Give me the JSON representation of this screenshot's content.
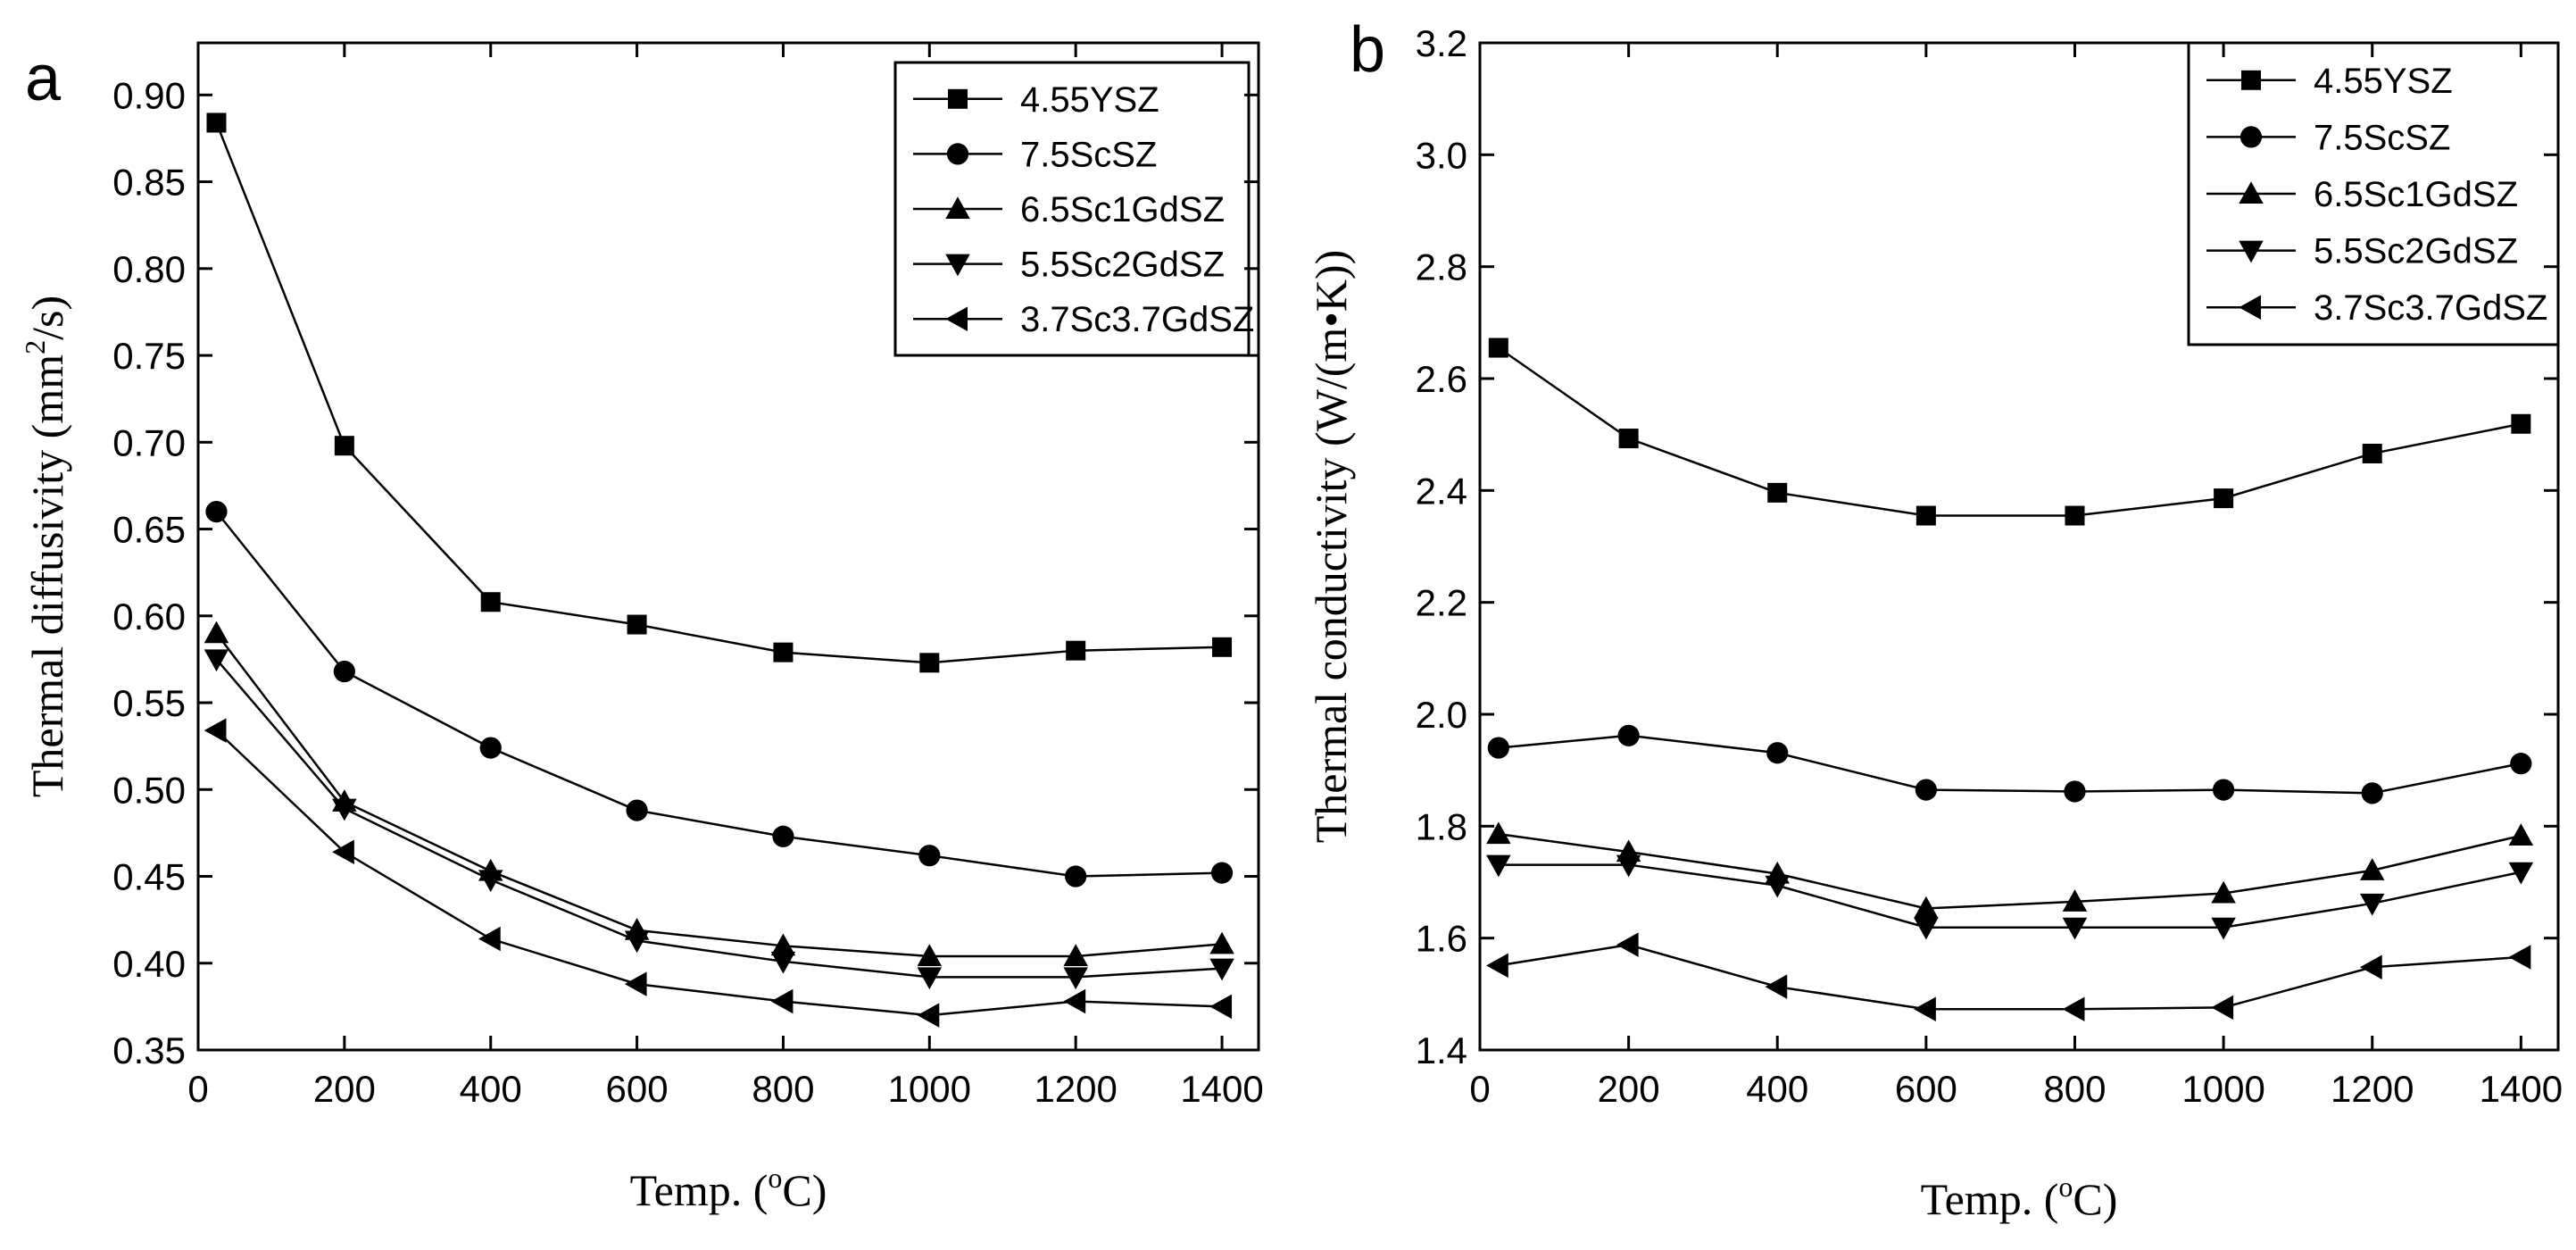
{
  "chart_data": [
    {
      "type": "line",
      "panel_label": "a",
      "title": "",
      "xlabel_prefix": "Temp. (",
      "xlabel_sup": "o",
      "xlabel_suffix": "C)",
      "ylabel_prefix": "Thermal diffusivity (mm",
      "ylabel_sup": "2",
      "ylabel_suffix": "/s)",
      "xlim": [
        0,
        1450
      ],
      "ylim": [
        0.35,
        0.93
      ],
      "xticks": [
        0,
        200,
        400,
        600,
        800,
        1000,
        1200,
        1400
      ],
      "xtick_labels": [
        "0",
        "200",
        "400",
        "600",
        "800",
        "1000",
        "1200",
        "1400"
      ],
      "yticks": [
        0.35,
        0.4,
        0.45,
        0.5,
        0.55,
        0.6,
        0.65,
        0.7,
        0.75,
        0.8,
        0.85,
        0.9
      ],
      "ytick_labels": [
        "0.35",
        "0.40",
        "0.45",
        "0.50",
        "0.55",
        "0.60",
        "0.65",
        "0.70",
        "0.75",
        "0.80",
        "0.85",
        "0.90"
      ],
      "grid": false,
      "legend_position": "top-right",
      "x": [
        25,
        200,
        400,
        600,
        800,
        1000,
        1200,
        1400
      ],
      "series": [
        {
          "name": "4.55YSZ",
          "marker": "square",
          "values": [
            0.884,
            0.698,
            0.608,
            0.595,
            0.579,
            0.573,
            0.58,
            0.582
          ]
        },
        {
          "name": "7.5ScSZ",
          "marker": "circle",
          "values": [
            0.66,
            0.568,
            0.524,
            0.488,
            0.473,
            0.462,
            0.45,
            0.452
          ]
        },
        {
          "name": "6.5Sc1GdSZ",
          "marker": "triangle-up",
          "values": [
            0.59,
            0.493,
            0.453,
            0.419,
            0.41,
            0.404,
            0.404,
            0.411
          ]
        },
        {
          "name": "5.5Sc2GdSZ",
          "marker": "triangle-down",
          "values": [
            0.575,
            0.489,
            0.448,
            0.413,
            0.401,
            0.392,
            0.392,
            0.397
          ]
        },
        {
          "name": "3.7Sc3.7GdSZ",
          "marker": "triangle-left",
          "values": [
            0.534,
            0.464,
            0.414,
            0.388,
            0.378,
            0.37,
            0.378,
            0.375
          ]
        }
      ]
    },
    {
      "type": "line",
      "panel_label": "b",
      "title": "",
      "xlabel_prefix": "Temp. (",
      "xlabel_sup": "o",
      "xlabel_suffix": "C)",
      "ylabel": "Thermal conductivity (W/(m•K))",
      "xlim": [
        0,
        1450
      ],
      "ylim": [
        1.4,
        3.2
      ],
      "xticks": [
        0,
        200,
        400,
        600,
        800,
        1000,
        1200,
        1400
      ],
      "xtick_labels": [
        "0",
        "200",
        "400",
        "600",
        "800",
        "1000",
        "1200",
        "1400"
      ],
      "yticks": [
        1.4,
        1.6,
        1.8,
        2.0,
        2.2,
        2.4,
        2.6,
        2.8,
        3.0,
        3.2
      ],
      "ytick_labels": [
        "1.4",
        "1.6",
        "1.8",
        "2.0",
        "2.2",
        "2.4",
        "2.6",
        "2.8",
        "3.0",
        "3.2"
      ],
      "grid": false,
      "legend_position": "top-right",
      "x": [
        25,
        200,
        400,
        600,
        800,
        1000,
        1200,
        1400
      ],
      "series": [
        {
          "name": "4.55YSZ",
          "marker": "square",
          "values": [
            2.655,
            2.493,
            2.396,
            2.355,
            2.355,
            2.386,
            2.466,
            2.519
          ]
        },
        {
          "name": "7.5ScSZ",
          "marker": "circle",
          "values": [
            1.94,
            1.962,
            1.931,
            1.865,
            1.862,
            1.865,
            1.859,
            1.912
          ]
        },
        {
          "name": "6.5Sc1GdSZ",
          "marker": "triangle-up",
          "values": [
            1.786,
            1.754,
            1.715,
            1.653,
            1.665,
            1.68,
            1.721,
            1.783
          ]
        },
        {
          "name": "5.5Sc2GdSZ",
          "marker": "triangle-down",
          "values": [
            1.731,
            1.731,
            1.694,
            1.619,
            1.619,
            1.619,
            1.662,
            1.718
          ]
        },
        {
          "name": "3.7Sc3.7GdSZ",
          "marker": "triangle-left",
          "values": [
            1.551,
            1.588,
            1.513,
            1.473,
            1.473,
            1.476,
            1.548,
            1.566
          ]
        }
      ]
    }
  ]
}
